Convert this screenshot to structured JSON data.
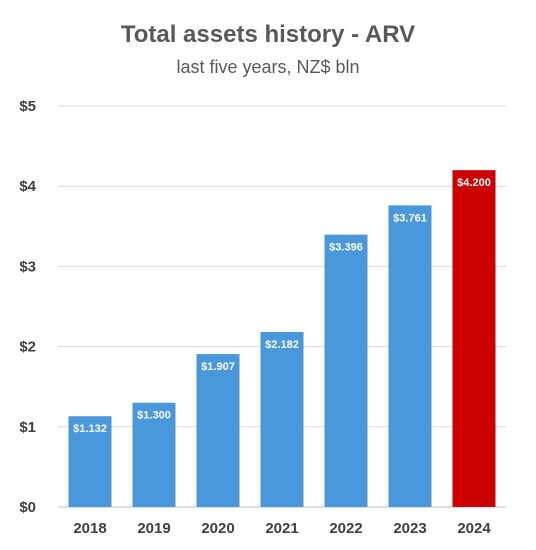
{
  "chart_data": {
    "type": "bar",
    "title": "Total assets history - ARV",
    "subtitle": "last five years, NZ$ bln",
    "xlabel": "",
    "ylabel": "",
    "categories": [
      "2018",
      "2019",
      "2020",
      "2021",
      "2022",
      "2023",
      "2024"
    ],
    "values": [
      1.132,
      1.3,
      1.907,
      2.182,
      3.396,
      3.761,
      4.2
    ],
    "data_labels": [
      "$1.132",
      "$1.300",
      "$1.907",
      "$2.182",
      "$3.396",
      "$3.761",
      "$4.200"
    ],
    "ylim": [
      0,
      5
    ],
    "yticks": [
      0,
      1,
      2,
      3,
      4,
      5
    ],
    "ytick_labels": [
      "$0",
      "$1",
      "$2",
      "$3",
      "$4",
      "$5"
    ],
    "grid": true,
    "legend": "none",
    "colors": {
      "default_bar": "#4a98dc",
      "highlight_bar": "#cc0000",
      "highlight_index": 6
    }
  }
}
